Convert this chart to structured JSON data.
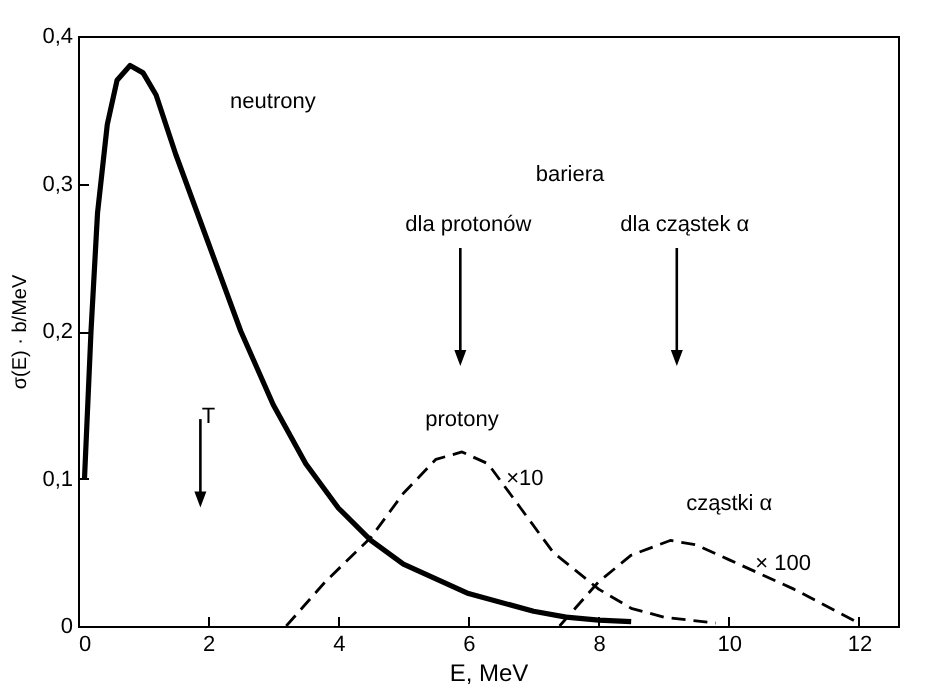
{
  "chart_data": {
    "type": "line",
    "xlabel": "E, MeV",
    "ylabel": "σ(E) · b/MeV",
    "xlim": [
      0,
      12.6
    ],
    "xticks": [
      0,
      2,
      4,
      6,
      8,
      10,
      12
    ],
    "ylim": [
      0,
      0.4
    ],
    "yticks": [
      0,
      {
        "value": 0.1,
        "label": "0,1"
      },
      {
        "value": 0.2,
        "label": "0,2"
      },
      {
        "value": 0.3,
        "label": "0,3"
      },
      {
        "value": 0.4,
        "label": "0,4"
      }
    ],
    "grid": false,
    "legend": false,
    "marker": "none",
    "series": [
      {
        "name": "neutrony",
        "color": "#000000",
        "line_style": "solid",
        "x": [
          0.1,
          0.2,
          0.3,
          0.45,
          0.6,
          0.8,
          1.0,
          1.2,
          1.5,
          2,
          2.5,
          3,
          3.5,
          4,
          4.5,
          5,
          6,
          7,
          7.5,
          8,
          8.5
        ],
        "values": [
          0.1,
          0.2,
          0.28,
          0.34,
          0.37,
          0.38,
          0.375,
          0.36,
          0.32,
          0.26,
          0.2,
          0.15,
          0.11,
          0.08,
          0.058,
          0.042,
          0.022,
          0.01,
          0.006,
          0.004,
          0.003
        ]
      },
      {
        "name": "protony",
        "color": "#000000",
        "line_style": "dashed",
        "x": [
          3.2,
          3.8,
          4.5,
          5,
          5.5,
          5.9,
          6.3,
          6.8,
          7.3,
          8,
          8.5,
          9,
          9.8
        ],
        "values": [
          0,
          0.03,
          0.06,
          0.09,
          0.113,
          0.118,
          0.11,
          0.08,
          0.05,
          0.025,
          0.012,
          0.006,
          0.002
        ]
      },
      {
        "name": "cząstki α",
        "color": "#000000",
        "line_style": "dashed",
        "x": [
          7.4,
          8,
          8.5,
          9.1,
          9.5,
          10,
          11,
          12
        ],
        "values": [
          0,
          0.03,
          0.048,
          0.058,
          0.055,
          0.045,
          0.025,
          0.002
        ]
      }
    ],
    "annotations": [
      "bariera",
      "dla protonów",
      "dla cząstek α",
      "×10",
      "× 100",
      "T"
    ]
  }
}
